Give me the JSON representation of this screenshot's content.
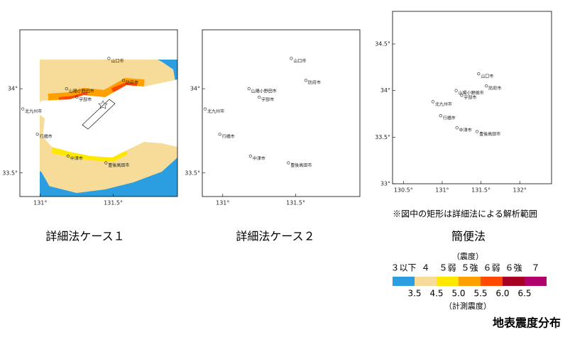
{
  "panels": [
    {
      "caption": "詳細法ケース１",
      "lonlim": [
        130.86,
        131.94
      ],
      "latlim": [
        33.36,
        34.35
      ],
      "xticks": [
        {
          "value": 131,
          "label": "131°"
        },
        {
          "value": 131.5,
          "label": "131.5°"
        }
      ],
      "yticks": [
        {
          "value": 34,
          "label": "34°"
        },
        {
          "value": 33.5,
          "label": "33.5°"
        }
      ],
      "cities": [
        {
          "name": "山口市",
          "lon": 131.47,
          "lat": 34.18
        },
        {
          "name": "山陽小野田市",
          "lon": 131.18,
          "lat": 34.0
        },
        {
          "name": "宇部市",
          "lon": 131.25,
          "lat": 33.95
        },
        {
          "name": "防府市",
          "lon": 131.57,
          "lat": 34.05
        },
        {
          "name": "北九州市",
          "lon": 130.88,
          "lat": 33.88
        },
        {
          "name": "行橋市",
          "lon": 130.98,
          "lat": 33.73
        },
        {
          "name": "中津市",
          "lon": 131.19,
          "lat": 33.6
        },
        {
          "name": "豊後高田市",
          "lon": 131.45,
          "lat": 33.56
        }
      ]
    },
    {
      "caption": "詳細法ケース２",
      "lonlim": [
        130.86,
        131.94
      ],
      "latlim": [
        33.36,
        34.35
      ],
      "xticks": [
        {
          "value": 131,
          "label": "131°"
        },
        {
          "value": 131.5,
          "label": "131.5°"
        }
      ],
      "yticks": [
        {
          "value": 34,
          "label": "34°"
        },
        {
          "value": 33.5,
          "label": "33.5°"
        }
      ],
      "cities": [
        {
          "name": "山口市",
          "lon": 131.47,
          "lat": 34.18
        },
        {
          "name": "山陽小野田市",
          "lon": 131.18,
          "lat": 34.0
        },
        {
          "name": "宇部市",
          "lon": 131.25,
          "lat": 33.95
        },
        {
          "name": "防府市",
          "lon": 131.57,
          "lat": 34.05
        },
        {
          "name": "北九州市",
          "lon": 130.88,
          "lat": 33.88
        },
        {
          "name": "行橋市",
          "lon": 130.98,
          "lat": 33.73
        },
        {
          "name": "中津市",
          "lon": 131.19,
          "lat": 33.6
        },
        {
          "name": "豊後高田市",
          "lon": 131.45,
          "lat": 33.56
        }
      ]
    },
    {
      "caption": "簡便法",
      "lonlim": [
        130.36,
        132.41
      ],
      "latlim": [
        33.0,
        34.85
      ],
      "xticks": [
        {
          "value": 130.5,
          "label": "130.5°"
        },
        {
          "value": 131,
          "label": "131°"
        },
        {
          "value": 131.5,
          "label": "131.5°"
        },
        {
          "value": 132,
          "label": "132°"
        }
      ],
      "yticks": [
        {
          "value": 34.5,
          "label": "34.5°"
        },
        {
          "value": 34,
          "label": "34°"
        },
        {
          "value": 33.5,
          "label": "33.5°"
        },
        {
          "value": 33,
          "label": "33°"
        }
      ],
      "cities": [
        {
          "name": "山口市",
          "lon": 131.47,
          "lat": 34.18
        },
        {
          "name": "山陽小野田市",
          "lon": 131.18,
          "lat": 34.0
        },
        {
          "name": "宇部市",
          "lon": 131.25,
          "lat": 33.95
        },
        {
          "name": "防府市",
          "lon": 131.57,
          "lat": 34.05
        },
        {
          "name": "北九州市",
          "lon": 130.88,
          "lat": 33.88
        },
        {
          "name": "行橋市",
          "lon": 130.98,
          "lat": 33.73
        },
        {
          "name": "中津市",
          "lon": 131.19,
          "lat": 33.6
        },
        {
          "name": "豊後高田市",
          "lon": 131.45,
          "lat": 33.56
        }
      ]
    }
  ],
  "note": "※図中の矩形は詳細法による解析範囲",
  "legend": {
    "title": "（震度）",
    "classes": [
      {
        "label": "３以下",
        "color": "#2b9ee2"
      },
      {
        "label": "４",
        "color": "#f6dc98"
      },
      {
        "label": "５弱",
        "color": "#ffe800"
      },
      {
        "label": "５強",
        "color": "#ffa000"
      },
      {
        "label": "６弱",
        "color": "#ff4800"
      },
      {
        "label": "６強",
        "color": "#a80024"
      },
      {
        "label": "７",
        "color": "#b0006c"
      }
    ],
    "thresholds": [
      3.5,
      4.5,
      {
        "value": 5,
        "label": "5.0"
      },
      5.5,
      {
        "value": 6,
        "label": "6.0"
      },
      6.5
    ],
    "subtitle": "（計測震度）"
  },
  "title": "地表震度分布"
}
